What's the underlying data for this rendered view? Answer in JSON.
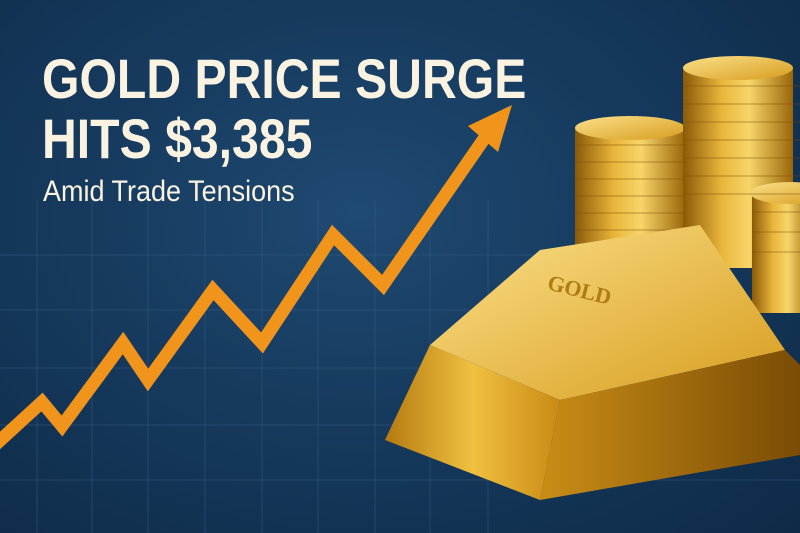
{
  "headline": {
    "line1": "GOLD PRICE SURGE",
    "line2": "HITS $3,385",
    "subtitle": "Amid Trade Tensions"
  },
  "bar_engraving": "GOLD",
  "colors": {
    "background": "#163a5e",
    "arrow": "#f0941c",
    "text": "#fbf3e2",
    "gold": "#e8b526"
  },
  "icons": [
    "rising-arrow",
    "gold-bar",
    "coin-stacks",
    "grid"
  ]
}
